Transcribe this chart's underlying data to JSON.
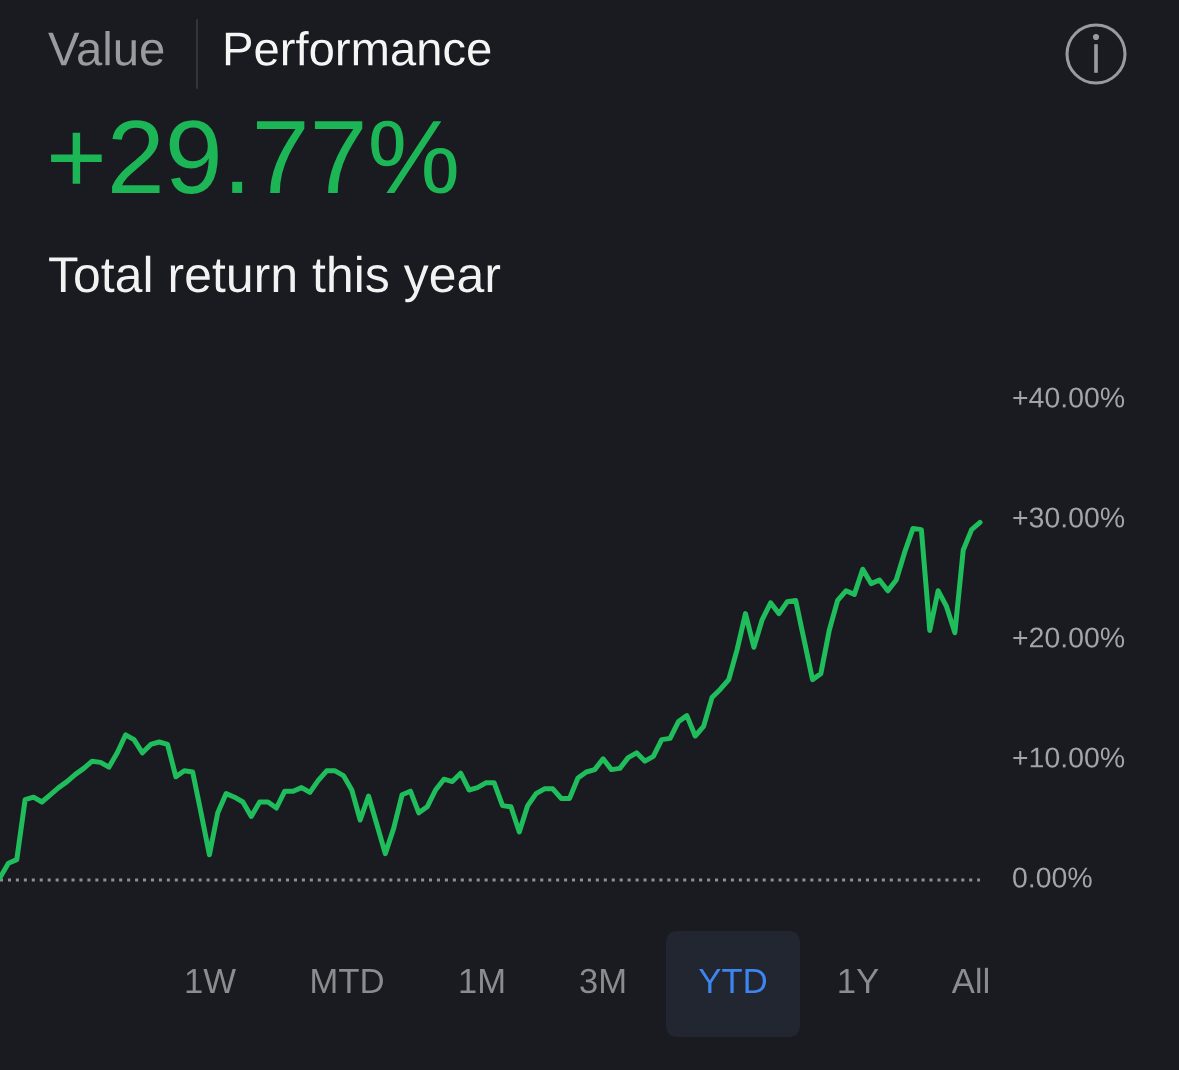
{
  "chart_data": {
    "type": "line",
    "title": "+29.77%",
    "subtitle": "Total return this year",
    "annotations": [
      "Value",
      "Performance",
      "1W",
      "MTD",
      "1M",
      "3M",
      "YTD",
      "1Y",
      "All"
    ],
    "categories": [
      null,
      null,
      null,
      null,
      null,
      null,
      null,
      null,
      null,
      null,
      null,
      null,
      null,
      null,
      null,
      null,
      null,
      null,
      null,
      null,
      null,
      null,
      null,
      null,
      null,
      null,
      null,
      null,
      null,
      null,
      null,
      null,
      null,
      null,
      null,
      null,
      null,
      null,
      null,
      null,
      null,
      null,
      null,
      null,
      null,
      null,
      null,
      null,
      null,
      null,
      null,
      null,
      null,
      null,
      null,
      null,
      null,
      null,
      null,
      null,
      null,
      null,
      null,
      null,
      null,
      null,
      null,
      null,
      null,
      null,
      null,
      null,
      null,
      null,
      null,
      null,
      null,
      null,
      null,
      null,
      null,
      null,
      null,
      null,
      null,
      null,
      null,
      null,
      null,
      null,
      null,
      null,
      null,
      null,
      null,
      null,
      null,
      null,
      null,
      null,
      null,
      null,
      null,
      null,
      null,
      null,
      null,
      null,
      null,
      null,
      null,
      null,
      null,
      null,
      null,
      null,
      null,
      null
    ],
    "series": [
      {
        "color": "#20bd5c",
        "values": [
          0.2,
          1.4,
          1.7,
          6.7,
          6.9,
          6.5,
          7.1,
          7.7,
          8.2,
          8.8,
          9.3,
          9.9,
          9.8,
          9.4,
          10.6,
          12.1,
          11.7,
          10.6,
          11.3,
          11.5,
          11.3,
          8.6,
          9.1,
          9.0,
          5.6,
          2.1,
          5.6,
          7.2,
          6.9,
          6.5,
          5.3,
          6.5,
          6.5,
          6.0,
          7.4,
          7.4,
          7.7,
          7.3,
          8.3,
          9.1,
          9.1,
          8.7,
          7.5,
          5.0,
          7.0,
          4.6,
          2.2,
          4.3,
          7.1,
          7.4,
          5.6,
          6.1,
          7.5,
          8.4,
          8.2,
          8.9,
          7.5,
          7.7,
          8.1,
          8.1,
          6.2,
          6.1,
          4.0,
          6.2,
          7.2,
          7.6,
          7.6,
          6.8,
          6.8,
          8.5,
          9.0,
          9.2,
          10.1,
          9.2,
          9.3,
          10.2,
          10.6,
          9.9,
          10.3,
          11.7,
          11.8,
          13.2,
          13.7,
          12.0,
          12.8,
          15.2,
          15.9,
          16.7,
          19.2,
          22.2,
          19.4,
          21.7,
          23.1,
          22.2,
          23.2,
          23.3,
          20.0,
          16.7,
          17.2,
          20.8,
          23.3,
          24.1,
          23.8,
          25.9,
          24.7,
          25.0,
          24.1,
          25.0,
          27.3,
          29.3,
          29.2,
          20.8,
          24.1,
          22.8,
          20.6,
          27.5,
          29.2,
          29.8
        ]
      }
    ],
    "ylim": [
      0,
      40
    ],
    "yticks": [
      {
        "value": 0,
        "label": "0.00%"
      },
      {
        "value": 10,
        "label": "+10.00%"
      },
      {
        "value": 20,
        "label": "+20.00%"
      },
      {
        "value": 30,
        "label": "+30.00%"
      },
      {
        "value": 40,
        "label": "+40.00%"
      }
    ],
    "tick_labels": "y",
    "grid": false,
    "marker": "none",
    "line_style": "solid",
    "ref_lines": [
      {
        "axis": "y",
        "value": 0,
        "color": "#8e8e93",
        "line_style": "dotted"
      }
    ]
  }
}
